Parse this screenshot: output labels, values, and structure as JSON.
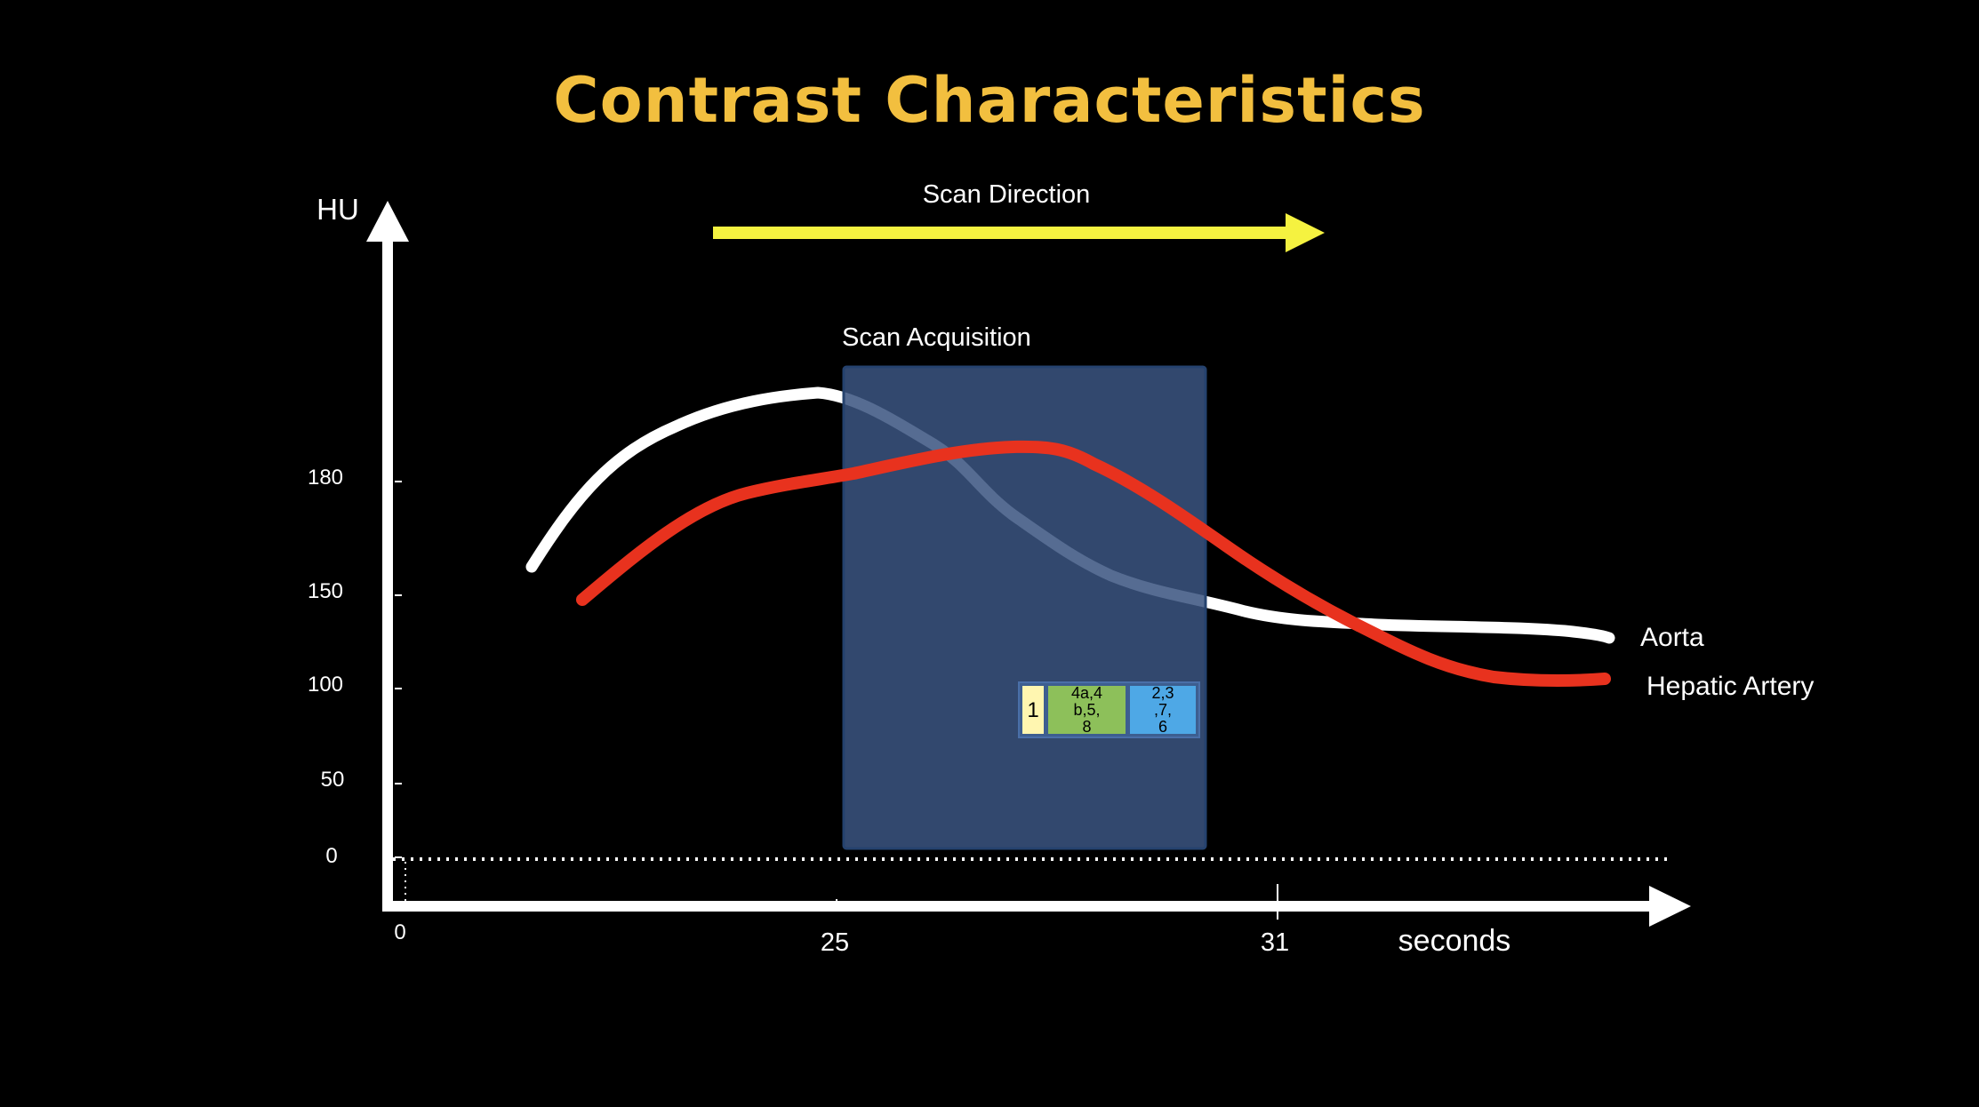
{
  "title": "Contrast Characteristics",
  "scan_direction_label": "Scan Direction",
  "scan_acquisition_label": "Scan Acquisition",
  "y_axis_label": "HU",
  "x_axis_label": "seconds",
  "y_ticks": [
    "180",
    "150",
    "100",
    "50",
    "0"
  ],
  "x_ticks": [
    "0",
    "25",
    "31"
  ],
  "segments": [
    {
      "label": "1",
      "color": "#FFF6B0"
    },
    {
      "label": "4a,4\nb,5,\n8",
      "color": "#8DC05A"
    },
    {
      "label": "2,3\n,7,\n6",
      "color": "#4EA8E6"
    }
  ],
  "series": [
    {
      "name": "Aorta",
      "color": "#FFFFFF"
    },
    {
      "name": "Hepatic Artery",
      "color": "#E8321E"
    }
  ],
  "colors": {
    "background": "#000000",
    "title": "#F2BF3F",
    "axis": "#FFFFFF",
    "arrow": "#F5F240",
    "scan_box": "#344A6E",
    "scan_box_border": "#25426E"
  }
}
